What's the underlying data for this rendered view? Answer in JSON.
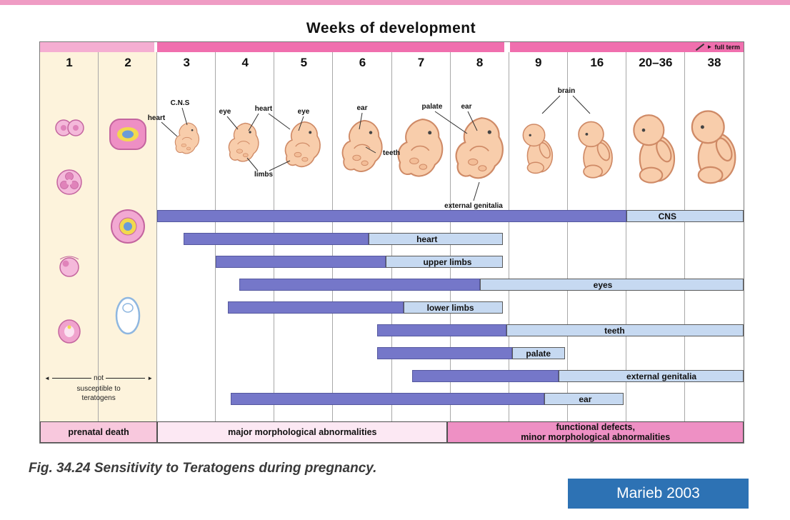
{
  "page": {
    "title": "Weeks of development",
    "caption": "Fig. 34.24  Sensitivity to Teratogens during pregnancy.",
    "credit": "Marieb 2003"
  },
  "header": {
    "weeks": [
      "1",
      "2",
      "3",
      "4",
      "5",
      "6",
      "7",
      "8",
      "9",
      "16",
      "20–36",
      "38"
    ],
    "full_term": "full term"
  },
  "icons": {
    "arrow_right": "►",
    "arrow_left": "◄"
  },
  "left_note": {
    "word": "not",
    "line2": "susceptible to",
    "line3": "teratogens"
  },
  "annotations": [
    {
      "text": "C.N.S"
    },
    {
      "text": "heart"
    },
    {
      "text": "eye"
    },
    {
      "text": "heart"
    },
    {
      "text": "eye"
    },
    {
      "text": "ear"
    },
    {
      "text": "teeth"
    },
    {
      "text": "palate"
    },
    {
      "text": "ear"
    },
    {
      "text": "external genitalia"
    },
    {
      "text": "brain"
    },
    {
      "text": "limbs"
    }
  ],
  "chart_data": {
    "type": "bar",
    "subtype": "critical-period-gantt",
    "unit_note": "positions in column units: 0 = left edge of week-1 column; columns are weeks 1,2,3,4,5,6,7,8,9,16,20-36,38",
    "bars": [
      {
        "label": "CNS",
        "dark": [
          2.0,
          10.0
        ],
        "light_end": 12.0,
        "label_pos": 10.7
      },
      {
        "label": "heart",
        "dark": [
          2.45,
          5.6
        ],
        "light_end": 7.9,
        "label_pos": 6.6
      },
      {
        "label": "upper limbs",
        "dark": [
          3.0,
          5.9
        ],
        "light_end": 7.9,
        "label_pos": 6.95
      },
      {
        "label": "eyes",
        "dark": [
          3.4,
          7.5
        ],
        "light_end": 12.0,
        "label_pos": 9.6
      },
      {
        "label": "lower limbs",
        "dark": [
          3.2,
          6.2
        ],
        "light_end": 7.9,
        "label_pos": 7.0
      },
      {
        "label": "teeth",
        "dark": [
          5.75,
          7.95
        ],
        "light_end": 12.0,
        "label_pos": 9.8
      },
      {
        "label": "palate",
        "dark": [
          5.75,
          8.05
        ],
        "light_end": 8.95,
        "label_pos": 8.5
      },
      {
        "label": "external genitalia",
        "dark": [
          6.35,
          8.85
        ],
        "light_end": 12.0,
        "label_pos": 10.6
      },
      {
        "label": "ear",
        "dark": [
          3.25,
          8.6
        ],
        "light_end": 9.95,
        "label_pos": 9.3
      }
    ],
    "phases": [
      {
        "lines": [
          "prenatal death"
        ],
        "range": [
          0,
          2
        ],
        "color": "#f8c8dd"
      },
      {
        "lines": [
          "major morphological abnormalities"
        ],
        "range": [
          2,
          6.95
        ],
        "color": "#fce8f3"
      },
      {
        "lines": [
          "functional defects,",
          "minor morphological abnormalities"
        ],
        "range": [
          6.95,
          12
        ],
        "color": "#ee90c4"
      }
    ],
    "colors": {
      "dark_bar": "#7577c9",
      "light_bar": "#c6d9f1",
      "header_pink": "#f06fae",
      "header_pink_light": "#f5aed2",
      "credit_blue": "#2d72b4"
    }
  }
}
